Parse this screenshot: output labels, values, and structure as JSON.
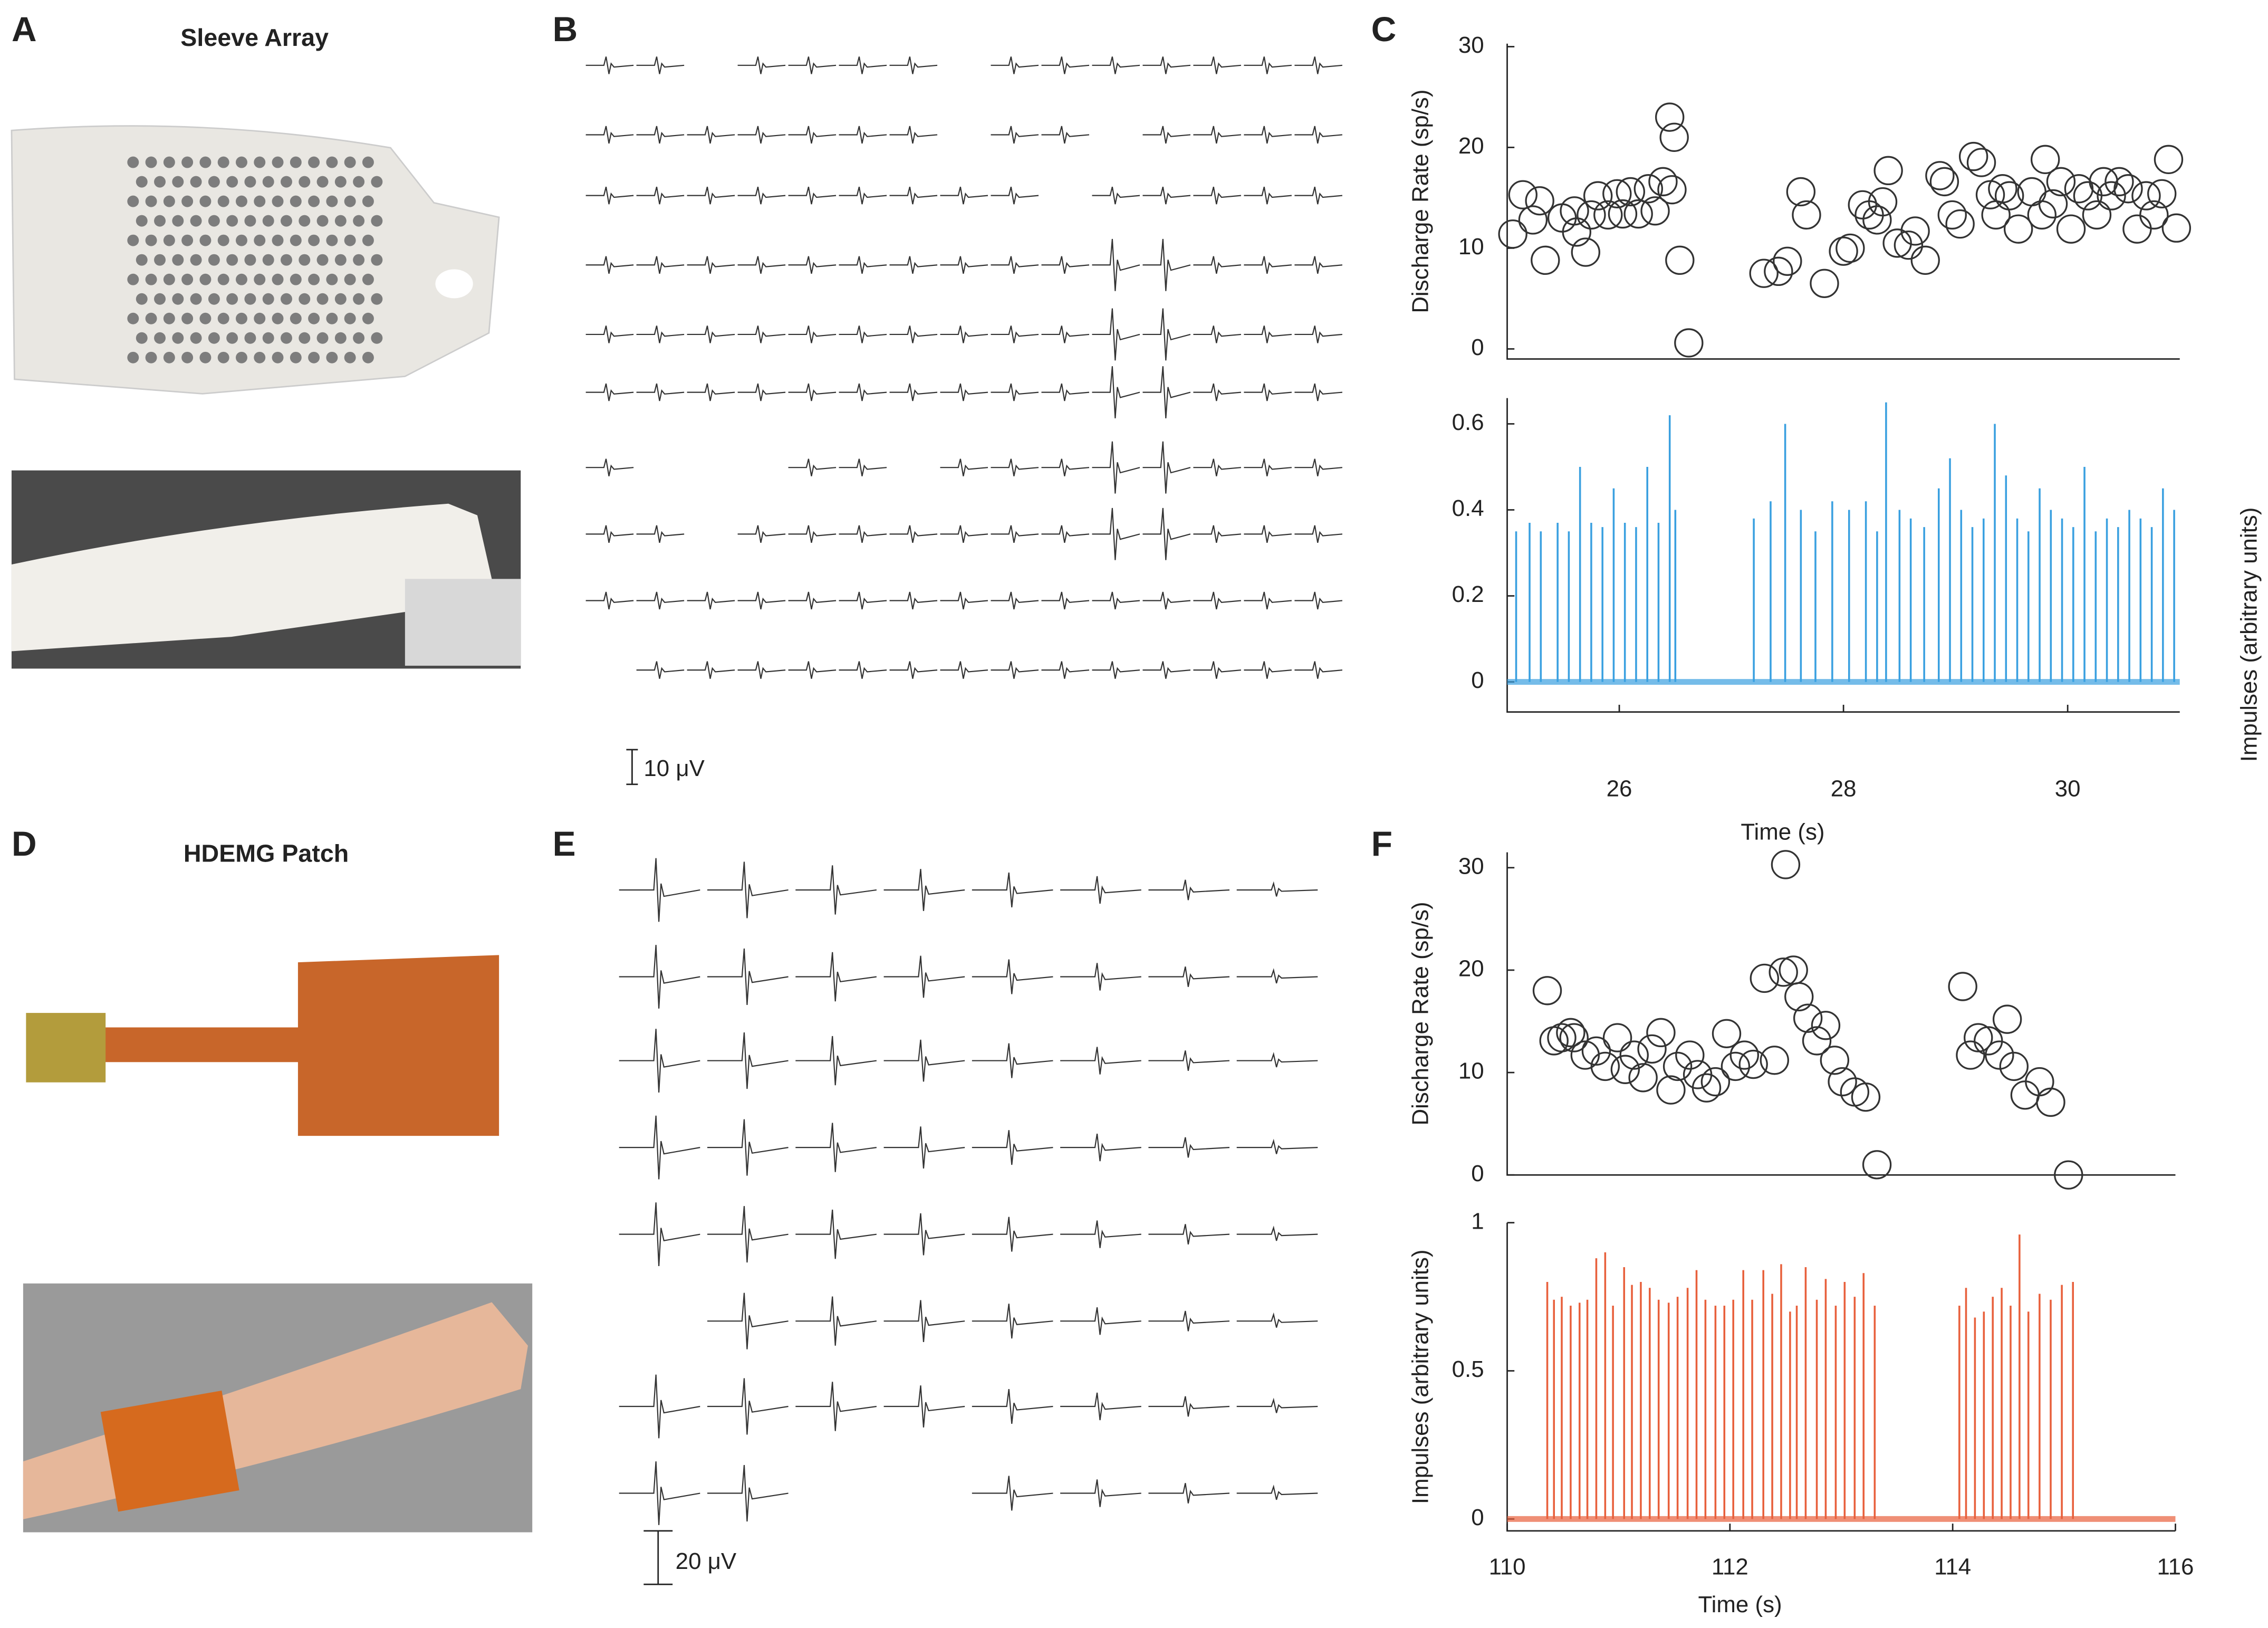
{
  "panels": {
    "letters": [
      "A",
      "B",
      "C",
      "D",
      "E",
      "F"
    ],
    "sleeve_title": "Sleeve Array",
    "patch_title": "HDEMG Patch",
    "scale_b": "10 μV",
    "scale_e": "20 μV"
  },
  "chart_data": [
    {
      "type": "scatter",
      "ylabel": "Discharge Rate (sp/s)",
      "color": "#333333",
      "xlim": [
        25,
        31
      ],
      "ylim": [
        -1,
        30.3
      ],
      "yticks": [
        0,
        10,
        20,
        30
      ],
      "x": [
        25.05,
        25.14,
        25.23,
        25.29,
        25.34,
        25.49,
        25.62,
        25.7,
        25.6,
        25.75,
        25.81,
        25.9,
        25.98,
        26.03,
        26.1,
        26.17,
        26.26,
        26.32,
        26.39,
        26.47,
        26.45,
        26.49,
        26.54,
        26.62,
        27.29,
        27.42,
        27.5,
        27.62,
        27.67,
        27.83,
        28,
        28.06,
        28.17,
        28.23,
        28.3,
        28.35,
        28.4,
        28.48,
        28.58,
        28.64,
        28.73,
        28.86,
        28.9,
        28.97,
        29.04,
        29.16,
        29.23,
        29.31,
        29.36,
        29.42,
        29.48,
        29.56,
        29.68,
        29.77,
        29.8,
        29.87,
        29.94,
        30.03,
        30.1,
        30.18,
        30.26,
        30.32,
        30.39,
        30.46,
        30.54,
        30.62,
        30.7,
        30.77,
        30.84,
        30.9,
        30.97
      ],
      "values": [
        11.4,
        15.3,
        12.8,
        14.7,
        8.8,
        13,
        11.6,
        9.6,
        13.7,
        13.3,
        15.2,
        13.3,
        15.4,
        13.4,
        15.6,
        13.4,
        15.9,
        13.7,
        16.6,
        15.8,
        23,
        21,
        8.8,
        0.6,
        7.5,
        7.7,
        8.7,
        15.6,
        13.3,
        6.5,
        9.7,
        10,
        14.3,
        13.3,
        12.8,
        14.6,
        17.7,
        10.5,
        10.3,
        11.7,
        8.8,
        17.2,
        16.6,
        13.3,
        12.4,
        19.1,
        18.5,
        15.3,
        13.3,
        15.9,
        15.2,
        11.9,
        15.6,
        13.3,
        18.8,
        14.4,
        16.6,
        11.9,
        15.9,
        15.2,
        13.3,
        16.6,
        15.2,
        16.6,
        15.9,
        11.9,
        15.2,
        13.3,
        15.4,
        18.8,
        12
      ]
    },
    {
      "type": "impulse",
      "ylabel": "Impulses (arbitrary units)",
      "ylabel_side": "right",
      "xlabel": "Time (s)",
      "color": "#3aa0e0",
      "xlim": [
        25,
        31
      ],
      "ylim": [
        -0.07,
        0.66
      ],
      "xticks": [
        26,
        28,
        30
      ],
      "yticks": [
        0,
        0.2,
        0.4,
        0.6
      ],
      "x": [
        25.08,
        25.2,
        25.3,
        25.45,
        25.55,
        25.65,
        25.75,
        25.85,
        25.95,
        26.05,
        26.15,
        26.25,
        26.35,
        26.45,
        26.5,
        27.2,
        27.35,
        27.48,
        27.62,
        27.75,
        27.9,
        28.05,
        28.2,
        28.3,
        28.38,
        28.5,
        28.6,
        28.72,
        28.85,
        28.95,
        29.05,
        29.15,
        29.25,
        29.35,
        29.45,
        29.55,
        29.65,
        29.75,
        29.85,
        29.95,
        30.05,
        30.15,
        30.25,
        30.35,
        30.45,
        30.55,
        30.65,
        30.75,
        30.85,
        30.95
      ],
      "values": [
        0.35,
        0.37,
        0.35,
        0.37,
        0.35,
        0.5,
        0.37,
        0.36,
        0.45,
        0.37,
        0.36,
        0.5,
        0.37,
        0.62,
        0.4,
        0.38,
        0.42,
        0.6,
        0.4,
        0.35,
        0.42,
        0.4,
        0.42,
        0.35,
        0.65,
        0.4,
        0.38,
        0.36,
        0.45,
        0.52,
        0.4,
        0.36,
        0.38,
        0.6,
        0.48,
        0.38,
        0.35,
        0.45,
        0.4,
        0.38,
        0.36,
        0.5,
        0.35,
        0.38,
        0.36,
        0.4,
        0.38,
        0.36,
        0.45,
        0.4
      ]
    },
    {
      "type": "scatter",
      "ylabel": "Discharge Rate (sp/s)",
      "color": "#333333",
      "xlim": [
        110,
        116
      ],
      "ylim": [
        0,
        31.5
      ],
      "yticks": [
        0,
        10,
        20,
        30
      ],
      "x": [
        110.36,
        110.42,
        110.49,
        110.57,
        110.6,
        110.7,
        110.8,
        110.88,
        110.99,
        111.06,
        111.14,
        111.22,
        111.3,
        111.38,
        111.47,
        111.53,
        111.64,
        111.71,
        111.79,
        111.87,
        111.97,
        112.05,
        112.13,
        112.21,
        112.31,
        112.4,
        112.48,
        112.5,
        112.57,
        112.62,
        112.7,
        112.78,
        112.86,
        112.94,
        113.01,
        113.12,
        113.22,
        113.32,
        114.09,
        114.16,
        114.23,
        114.32,
        114.42,
        114.49,
        114.55,
        114.65,
        114.78,
        114.88,
        115.04
      ],
      "values": [
        18,
        13.1,
        13.4,
        13.9,
        13.4,
        11.7,
        12.1,
        10.6,
        13.4,
        10.3,
        11.7,
        9.5,
        12.3,
        13.9,
        8.3,
        10.6,
        11.7,
        9.8,
        8.5,
        9.1,
        13.8,
        10.6,
        11.7,
        10.8,
        19.2,
        11.2,
        19.8,
        30.3,
        20,
        17.4,
        15.3,
        13.1,
        14.6,
        11.2,
        9.1,
        8.1,
        7.6,
        1,
        18.4,
        11.7,
        13.4,
        13.1,
        11.7,
        15.2,
        10.6,
        7.8,
        9.1,
        7.1,
        0
      ]
    },
    {
      "type": "impulse",
      "ylabel": "Impulses (arbitrary units)",
      "xlabel": "Time (s)",
      "color": "#e8603c",
      "xlim": [
        110,
        116
      ],
      "ylim": [
        -0.04,
        1.0
      ],
      "xticks": [
        110,
        112,
        114,
        116
      ],
      "yticks": [
        0,
        0.5,
        1
      ],
      "x": [
        110.36,
        110.42,
        110.49,
        110.57,
        110.65,
        110.72,
        110.8,
        110.88,
        110.95,
        111.05,
        111.12,
        111.2,
        111.28,
        111.36,
        111.45,
        111.53,
        111.62,
        111.7,
        111.78,
        111.87,
        111.95,
        112.03,
        112.12,
        112.2,
        112.3,
        112.38,
        112.46,
        112.54,
        112.6,
        112.68,
        112.78,
        112.86,
        112.95,
        113.03,
        113.12,
        113.2,
        113.3,
        114.06,
        114.12,
        114.2,
        114.28,
        114.36,
        114.44,
        114.52,
        114.6,
        114.68,
        114.78,
        114.88,
        114.98,
        115.08
      ],
      "values": [
        0.8,
        0.74,
        0.75,
        0.72,
        0.73,
        0.74,
        0.88,
        0.9,
        0.72,
        0.85,
        0.79,
        0.8,
        0.78,
        0.74,
        0.73,
        0.75,
        0.78,
        0.84,
        0.74,
        0.72,
        0.72,
        0.74,
        0.84,
        0.74,
        0.84,
        0.76,
        0.86,
        0.7,
        0.72,
        0.85,
        0.74,
        0.81,
        0.72,
        0.8,
        0.75,
        0.83,
        0.72,
        0.72,
        0.78,
        0.68,
        0.7,
        0.75,
        0.78,
        0.72,
        0.96,
        0.7,
        0.76,
        0.74,
        0.79,
        0.8
      ]
    }
  ]
}
